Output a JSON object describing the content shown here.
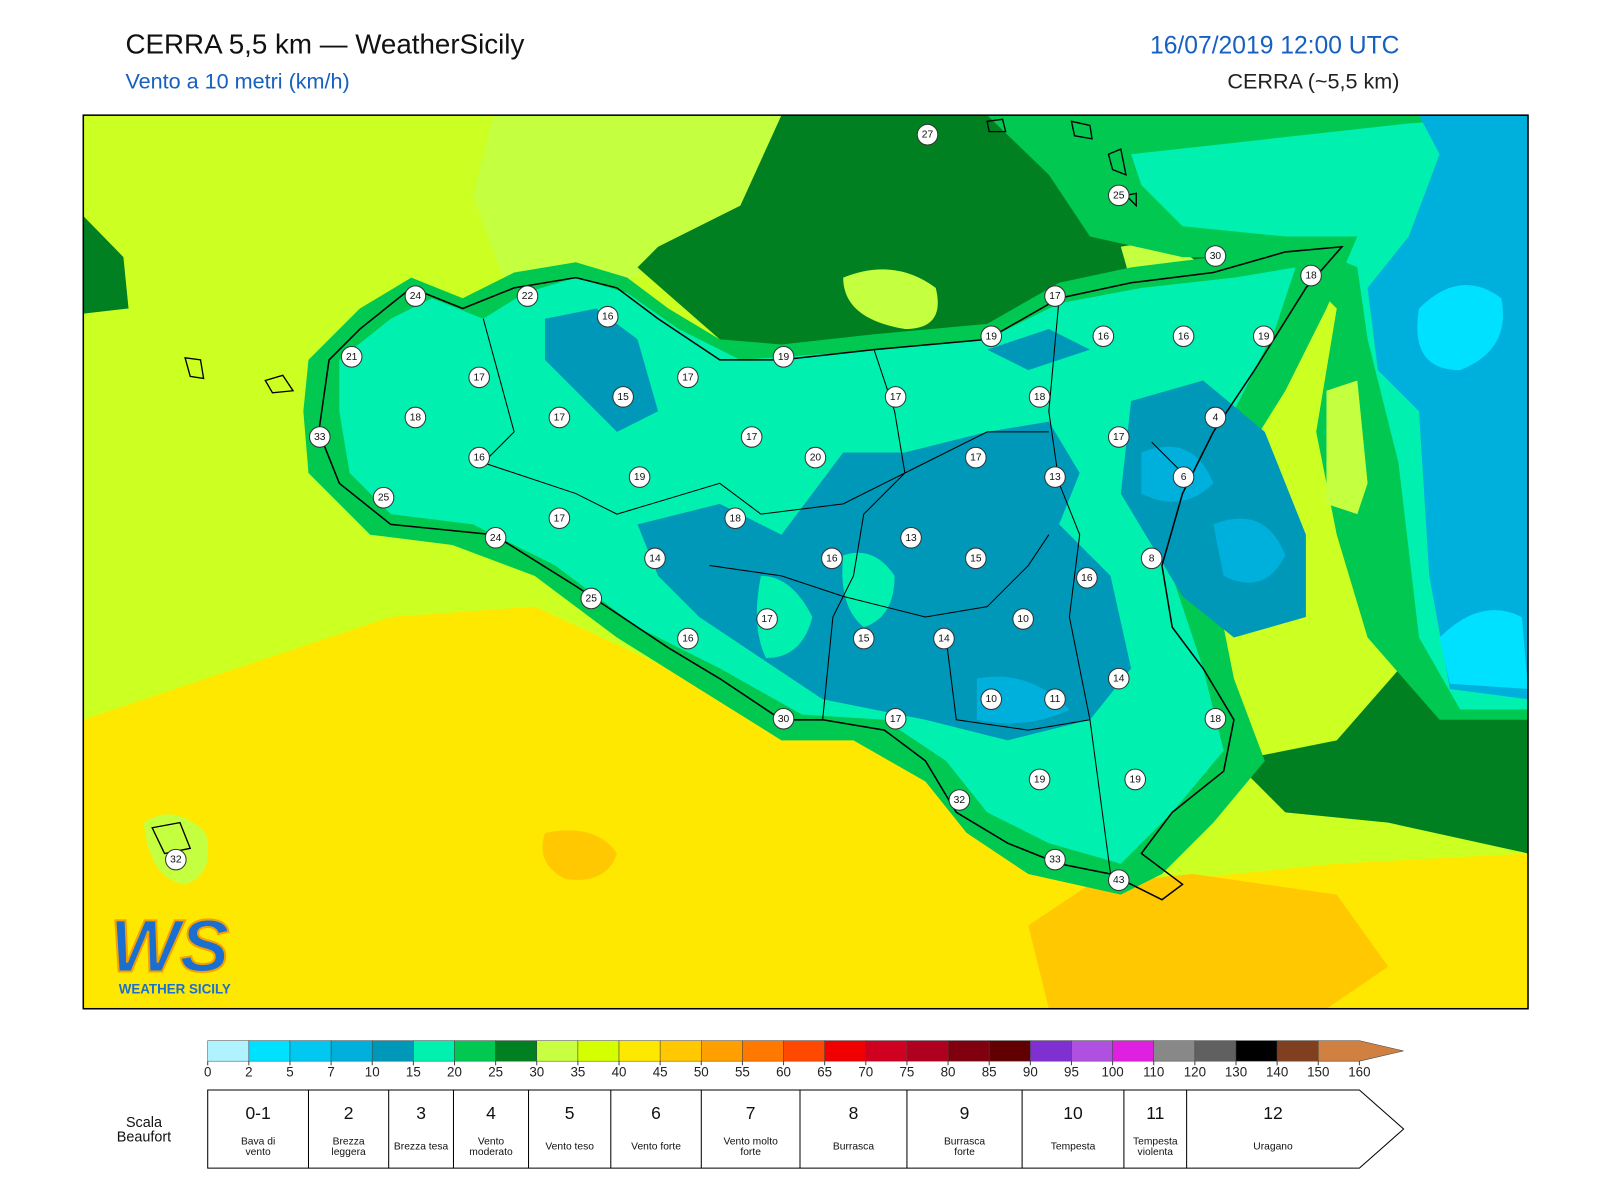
{
  "header": {
    "title": "CERRA 5,5 km — WeatherSicily",
    "subtitle": "Vento a 10 metri (km/h)",
    "datetime": "16/07/2019 12:00 UTC",
    "model": "CERRA (~5,5 km)"
  },
  "stations": [
    27,
    25,
    30,
    18,
    24,
    22,
    16,
    17,
    21,
    19,
    19,
    16,
    16,
    19,
    17,
    17,
    15,
    17,
    18,
    18,
    17,
    4,
    33,
    17,
    17,
    16,
    20,
    17,
    19,
    13,
    6,
    25,
    17,
    18,
    24,
    13,
    14,
    16,
    15,
    8,
    16,
    25,
    17,
    10,
    16,
    15,
    14,
    14,
    10,
    11,
    30,
    17,
    18,
    19,
    19,
    32,
    32,
    33,
    43
  ],
  "logo": {
    "text": "WS",
    "subtext": "WEATHER SICILY"
  },
  "colorbar": {
    "ticks": [
      0,
      2,
      5,
      7,
      10,
      15,
      20,
      25,
      30,
      35,
      40,
      45,
      50,
      55,
      60,
      65,
      70,
      75,
      80,
      85,
      90,
      95,
      100,
      110,
      120,
      130,
      140,
      150,
      160
    ],
    "colors": [
      "#b0f2ff",
      "#00e0ff",
      "#00c8f0",
      "#00b0dc",
      "#0098b8",
      "#00f0b0",
      "#00c850",
      "#008020",
      "#c8ff40",
      "#d4ff00",
      "#ffe800",
      "#ffc800",
      "#ffa000",
      "#ff7800",
      "#ff4800",
      "#f00000",
      "#d00020",
      "#b00020",
      "#800010",
      "#600000",
      "#8030d0",
      "#b050e0",
      "#e020e0",
      "#888888",
      "#606060",
      "#000000",
      "#804020",
      "#d08040"
    ]
  },
  "beaufort": {
    "label": "Scala Beaufort",
    "levels": [
      {
        "force": "0-1",
        "desc": "Bava di vento"
      },
      {
        "force": "2",
        "desc": "Brezza leggera"
      },
      {
        "force": "3",
        "desc": "Brezza tesa"
      },
      {
        "force": "4",
        "desc": "Vento moderato"
      },
      {
        "force": "5",
        "desc": "Vento teso"
      },
      {
        "force": "6",
        "desc": "Vento forte"
      },
      {
        "force": "7",
        "desc": "Vento molto forte"
      },
      {
        "force": "8",
        "desc": "Burrasca"
      },
      {
        "force": "9",
        "desc": "Burrasca forte"
      },
      {
        "force": "10",
        "desc": "Tempesta"
      },
      {
        "force": "11",
        "desc": "Tempesta violenta"
      },
      {
        "force": "12",
        "desc": "Uragano"
      }
    ]
  }
}
